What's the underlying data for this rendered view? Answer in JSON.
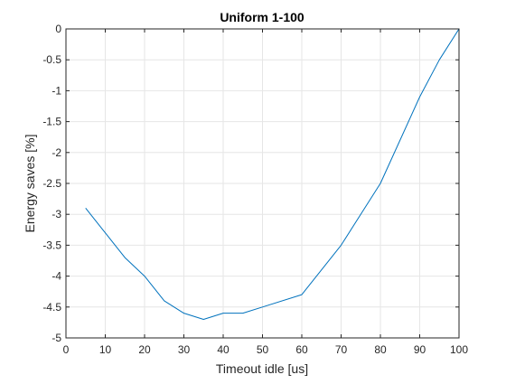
{
  "chart_data": {
    "type": "line",
    "title": "Uniform 1-100",
    "xlabel": "Timeout idle [us]",
    "ylabel": "Energy saves [%]",
    "xlim": [
      0,
      100
    ],
    "ylim": [
      -5,
      0
    ],
    "xticks": [
      0,
      10,
      20,
      30,
      40,
      50,
      60,
      70,
      80,
      90,
      100
    ],
    "yticks": [
      0,
      -0.5,
      -1,
      -1.5,
      -2,
      -2.5,
      -3,
      -3.5,
      -4,
      -4.5,
      -5
    ],
    "xtick_labels": [
      "0",
      "10",
      "20",
      "30",
      "40",
      "50",
      "60",
      "70",
      "80",
      "90",
      "100"
    ],
    "ytick_labels": [
      "0",
      "-0.5",
      "-1",
      "-1.5",
      "-2",
      "-2.5",
      "-3",
      "-3.5",
      "-4",
      "-4.5",
      "-5"
    ],
    "grid": true,
    "series": [
      {
        "color": "#0072bd",
        "x": [
          5,
          10,
          15,
          20,
          25,
          30,
          35,
          40,
          45,
          50,
          60,
          70,
          80,
          90,
          95,
          100
        ],
        "y": [
          -2.9,
          -3.3,
          -3.7,
          -4.0,
          -4.4,
          -4.6,
          -4.7,
          -4.6,
          -4.6,
          -4.5,
          -4.3,
          -3.5,
          -2.5,
          -1.1,
          -0.5,
          0.0
        ]
      }
    ]
  }
}
